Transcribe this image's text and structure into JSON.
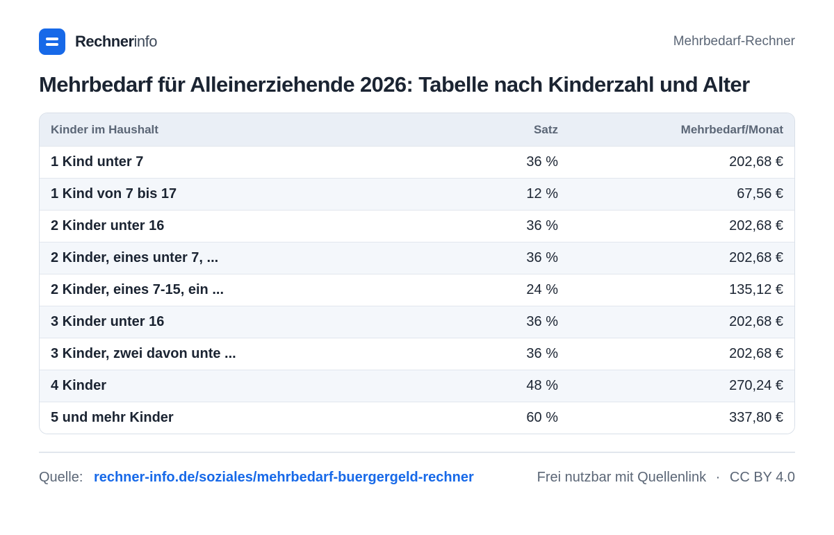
{
  "header": {
    "brand_strong": "Rechner",
    "brand_light": "info",
    "right_label": "Mehrbedarf-Rechner"
  },
  "title": "Mehrbedarf für Alleinerziehende 2026: Tabelle nach Kinderzahl und Alter",
  "table": {
    "columns": [
      "Kinder im Haushalt",
      "Satz",
      "Mehrbedarf/Monat"
    ],
    "rows": [
      {
        "name": "1 Kind unter 7",
        "rate": "36 %",
        "amount": "202,68 €"
      },
      {
        "name": "1 Kind von 7 bis 17",
        "rate": "12 %",
        "amount": "67,56 €"
      },
      {
        "name": "2 Kinder unter 16",
        "rate": "36 %",
        "amount": "202,68 €"
      },
      {
        "name": "2 Kinder, eines unter 7, ...",
        "rate": "36 %",
        "amount": "202,68 €"
      },
      {
        "name": "2 Kinder, eines 7-15, ein ...",
        "rate": "24 %",
        "amount": "135,12 €"
      },
      {
        "name": "3 Kinder unter 16",
        "rate": "36 %",
        "amount": "202,68 €"
      },
      {
        "name": "3 Kinder, zwei davon unte ...",
        "rate": "36 %",
        "amount": "202,68 €"
      },
      {
        "name": "4 Kinder",
        "rate": "48 %",
        "amount": "270,24 €"
      },
      {
        "name": "5 und mehr Kinder",
        "rate": "60 %",
        "amount": "337,80 €"
      }
    ]
  },
  "footer": {
    "source_label": "Quelle:",
    "source_link": "rechner-info.de/soziales/mehrbedarf-buergergeld-rechner",
    "usage_note": "Frei nutzbar mit Quellenlink",
    "separator": "·",
    "license": "CC BY 4.0"
  },
  "colors": {
    "accent": "#1769e8",
    "text": "#1b2432",
    "muted": "#5b6676",
    "row_alt": "#f4f7fb",
    "header_bg": "#eaeff6"
  }
}
